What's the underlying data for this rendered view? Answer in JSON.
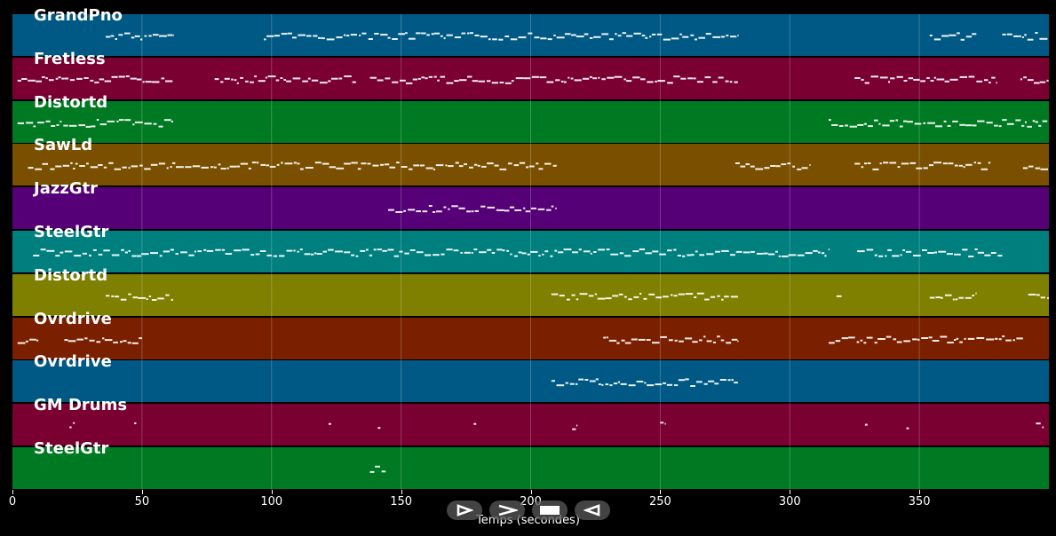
{
  "tracks": [
    {
      "label": "GrandPno",
      "color": "#005984"
    },
    {
      "label": "Fretless",
      "color": "#7a0032"
    },
    {
      "label": "Distortd",
      "color": "#007a22"
    },
    {
      "label": "SawLd",
      "color": "#7a5000"
    },
    {
      "label": "JazzGtr",
      "color": "#560078"
    },
    {
      "label": "SteelGtr",
      "color": "#007f7f"
    },
    {
      "label": "Distortd",
      "color": "#7f7f00"
    },
    {
      "label": "Ovrdrive",
      "color": "#7a2000"
    },
    {
      "label": "Ovrdrive",
      "color": "#005984"
    },
    {
      "label": "GM Drums",
      "color": "#7a0032"
    },
    {
      "label": "SteelGtr",
      "color": "#007a22"
    }
  ],
  "chart_data": {
    "type": "piano-roll",
    "xlabel": "Temps (secondes)",
    "xlim": [
      0,
      400
    ],
    "xticks": [
      0,
      50,
      100,
      150,
      200,
      250,
      300,
      350
    ],
    "grid": true,
    "segments": [
      [
        [
          36,
          62
        ],
        [
          97,
          280
        ],
        [
          354,
          372
        ],
        [
          382,
          400
        ]
      ],
      [
        [
          2,
          62
        ],
        [
          78,
          133
        ],
        [
          138,
          280
        ],
        [
          325,
          380
        ],
        [
          389,
          400
        ]
      ],
      [
        [
          2,
          62
        ],
        [
          315,
          400
        ]
      ],
      [
        [
          6,
          210
        ],
        [
          279,
          308
        ],
        [
          325,
          378
        ],
        [
          390,
          400
        ]
      ],
      [
        [
          145,
          210
        ]
      ],
      [
        [
          8,
          315
        ],
        [
          326,
          382
        ]
      ],
      [
        [
          36,
          62
        ],
        [
          208,
          280
        ],
        [
          318,
          320
        ],
        [
          354,
          372
        ],
        [
          392,
          400
        ]
      ],
      [
        [
          2,
          10
        ],
        [
          20,
          50
        ],
        [
          228,
          280
        ],
        [
          315,
          390
        ]
      ],
      [
        [
          208,
          280
        ]
      ],
      [
        [
          22,
          24
        ],
        [
          47,
          48
        ],
        [
          122,
          123
        ],
        [
          141,
          142
        ],
        [
          178,
          179
        ],
        [
          216,
          218
        ],
        [
          250,
          252
        ],
        [
          329,
          330
        ],
        [
          345,
          346
        ],
        [
          395,
          398
        ]
      ],
      [
        [
          138,
          144
        ]
      ]
    ]
  },
  "controls": {
    "play_icon": "play-icon",
    "forward_icon": "forward-icon",
    "stop_icon": "stop-icon",
    "rewind_icon": "rewind-icon"
  }
}
